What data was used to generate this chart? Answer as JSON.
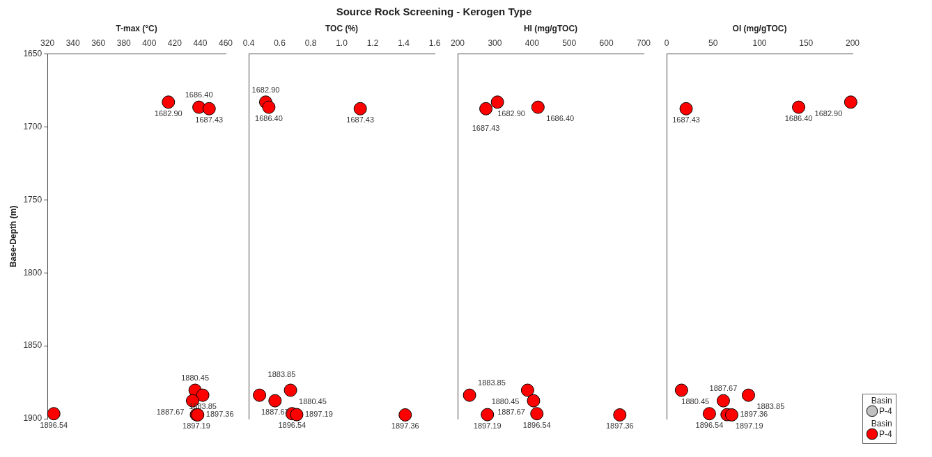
{
  "chart_data": [
    {
      "type": "scatter",
      "xlabel": "T-max (°C)",
      "ylabel": "Base-Depth (m)",
      "xlim": [
        320,
        460
      ],
      "xticks": [
        320,
        340,
        360,
        380,
        400,
        420,
        440,
        460
      ],
      "ylim": [
        1900,
        1650
      ],
      "yticks": [
        1650,
        1700,
        1750,
        1800,
        1850,
        1900
      ],
      "grid": false,
      "marker": "circle",
      "series": [
        {
          "color": "#ff0000",
          "x": [
            415,
            439,
            447,
            436,
            442,
            434,
            325,
            437,
            438
          ],
          "values": [
            1682.9,
            1686.4,
            1687.43,
            1880.45,
            1883.85,
            1887.67,
            1896.54,
            1897.19,
            1897.36
          ],
          "value_labels": [
            "1682.90",
            "1686.40",
            "1687.43",
            "1880.45",
            "1883.85",
            "1887.67",
            "1896.54",
            "1897.19",
            "1897.36"
          ]
        }
      ]
    },
    {
      "type": "scatter",
      "title": "Source Rock Screening - Kerogen Type",
      "xlabel": "TOC (%)",
      "xlim": [
        0.4,
        1.6
      ],
      "xticks": [
        0.4,
        0.6,
        0.8,
        {
          "value": 1.0,
          "label": "1.0"
        },
        1.2,
        1.4,
        1.6
      ],
      "ylim": [
        1900,
        1650
      ],
      "tick_labels": "x",
      "grid": false,
      "marker": "circle",
      "series": [
        {
          "color": "#ff0000",
          "x": [
            0.51,
            0.53,
            1.12,
            0.67,
            0.47,
            0.57,
            0.68,
            0.71,
            1.41
          ],
          "values": [
            1682.9,
            1686.4,
            1687.43,
            1880.45,
            1883.85,
            1887.67,
            1896.54,
            1897.19,
            1897.36
          ],
          "value_labels": [
            "1682.90",
            "1686.40",
            "1687.43",
            "1880.45",
            "1883.85",
            "1887.67",
            "1896.54",
            "1897.19",
            "1897.36"
          ]
        }
      ]
    },
    {
      "type": "scatter",
      "xlabel": "HI (mg/gTOC)",
      "xlim": [
        200,
        700
      ],
      "xticks": [
        200,
        300,
        400,
        500,
        600,
        700
      ],
      "ylim": [
        1900,
        1650
      ],
      "tick_labels": "x",
      "grid": false,
      "marker": "circle",
      "series": [
        {
          "color": "#ff0000",
          "x": [
            307,
            416,
            276,
            388,
            232,
            404,
            413,
            280,
            636
          ],
          "values": [
            1682.9,
            1686.4,
            1687.43,
            1880.45,
            1883.85,
            1887.67,
            1896.54,
            1897.19,
            1897.36
          ],
          "value_labels": [
            "1682.90",
            "1686.40",
            "1687.43",
            "1880.45",
            "1883.85",
            "1887.67",
            "1896.54",
            "1897.19",
            "1897.36"
          ]
        }
      ]
    },
    {
      "type": "scatter",
      "xlabel": "OI (mg/gTOC)",
      "xlim": [
        0,
        200
      ],
      "xticks": [
        0,
        50,
        100,
        150,
        200
      ],
      "ylim": [
        1900,
        1650
      ],
      "tick_labels": "x",
      "grid": false,
      "marker": "circle",
      "legend": "bottom right",
      "legend_title": "Basin",
      "series": [
        {
          "name": "P-4",
          "color": "#c0c0c0",
          "x": [
            null
          ],
          "values": [
            null
          ]
        },
        {
          "name": "P-4",
          "color": "#ff0000",
          "x": [
            198,
            142,
            21,
            16,
            88,
            61,
            46,
            65,
            70
          ],
          "values": [
            1682.9,
            1686.4,
            1687.43,
            1880.45,
            1883.85,
            1887.67,
            1896.54,
            1897.19,
            1897.36
          ],
          "value_labels": [
            "1682.90",
            "1686.40",
            "1687.43",
            "1880.45",
            "1883.85",
            "1887.67",
            "1896.54",
            "1897.19",
            "1897.36"
          ]
        }
      ]
    }
  ]
}
